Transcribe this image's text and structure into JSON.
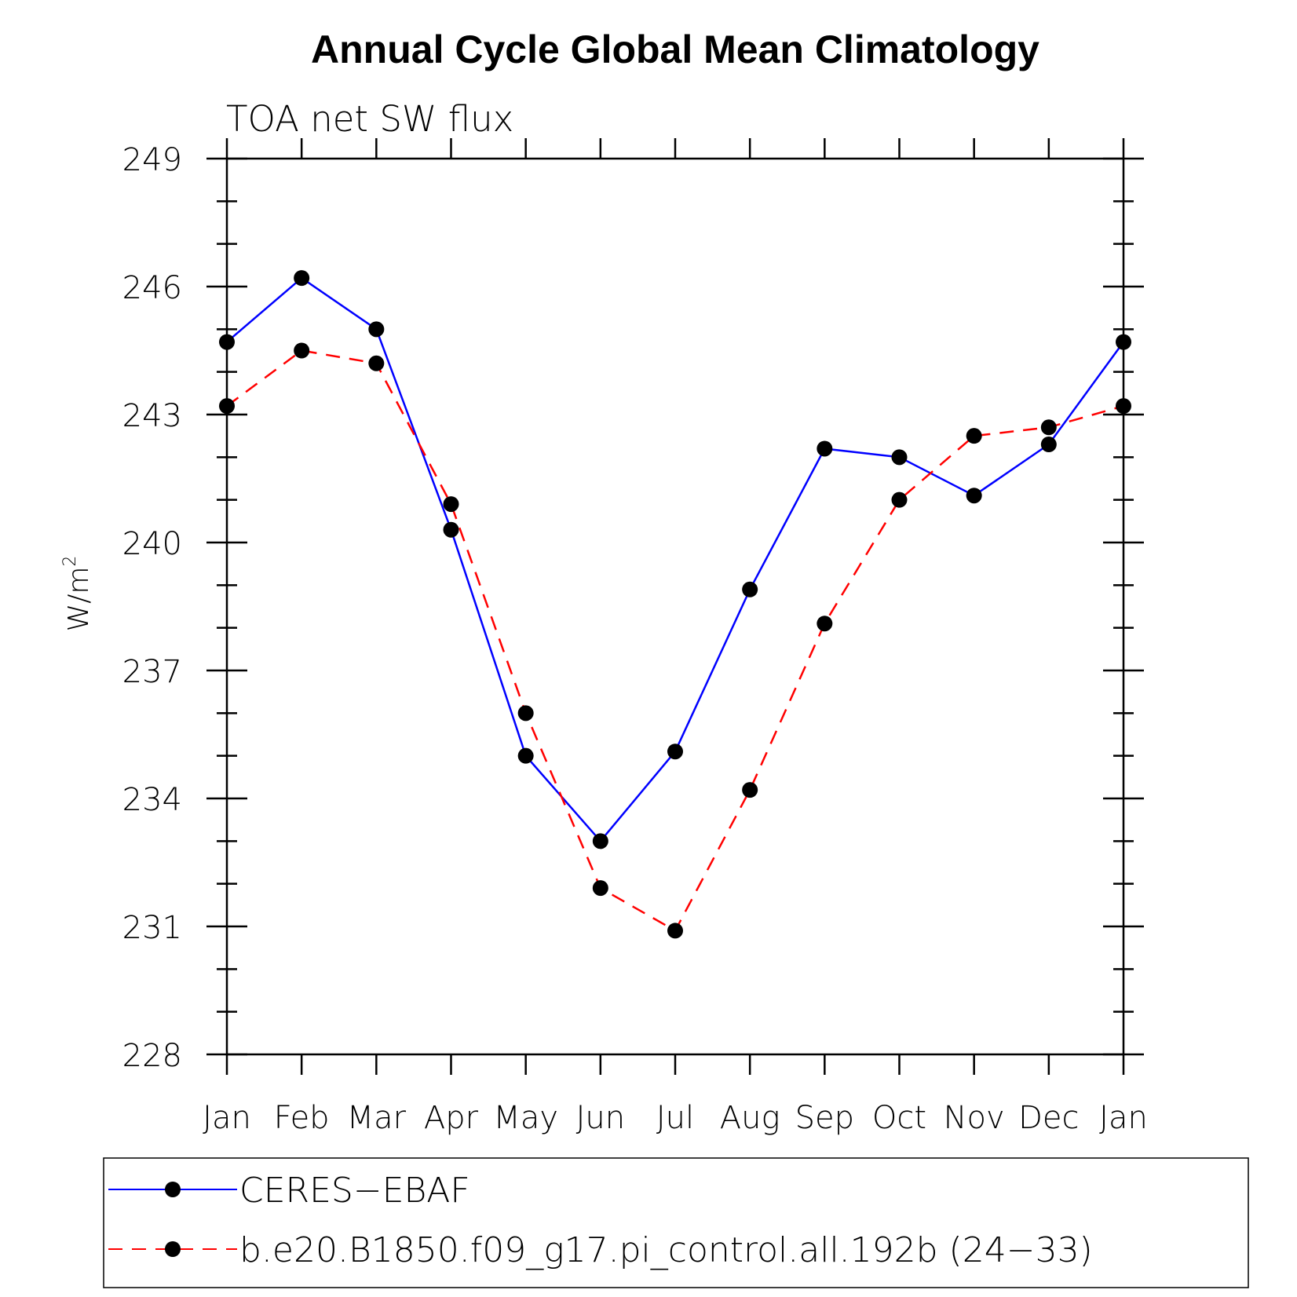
{
  "chart_data": {
    "type": "line",
    "title": "Annual Cycle Global Mean Climatology",
    "subtitle": "TOA net SW flux",
    "ylabel": "W/m",
    "ylabel_superscript": "2",
    "categories": [
      "Jan",
      "Feb",
      "Mar",
      "Apr",
      "May",
      "Jun",
      "Jul",
      "Aug",
      "Sep",
      "Oct",
      "Nov",
      "Dec",
      "Jan"
    ],
    "ylim": [
      228,
      249
    ],
    "yticks": [
      "228",
      "231",
      "234",
      "237",
      "240",
      "243",
      "246",
      "249"
    ],
    "grid": false,
    "legend_position": "bottom",
    "series": [
      {
        "name": "CERES−EBAF",
        "color": "#0000ff",
        "dash": "solid",
        "marker": "filled-circle",
        "values": [
          244.7,
          246.2,
          245.0,
          240.3,
          235.0,
          233.0,
          235.1,
          238.9,
          242.2,
          242.0,
          241.1,
          242.3,
          244.7
        ]
      },
      {
        "name": "b.e20.B1850.f09_g17.pi_control.all.192b (24−33)",
        "color": "#ff0000",
        "dash": "dashed",
        "marker": "filled-circle",
        "values": [
          243.2,
          244.5,
          244.2,
          240.9,
          236.0,
          231.9,
          230.9,
          234.2,
          238.1,
          241.0,
          242.5,
          242.7,
          243.2
        ]
      }
    ]
  }
}
